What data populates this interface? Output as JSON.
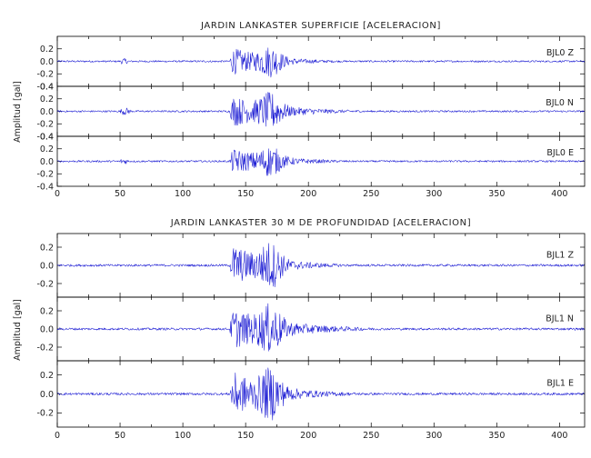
{
  "chart_data": [
    {
      "type": "line",
      "title": "JARDIN LANKASTER SUPERFICIE [ACELERACION]",
      "ylabel": "Amplitud [gal]",
      "xlabel": "",
      "xlim": [
        0,
        420
      ],
      "xticks": [
        "0",
        "50",
        "100",
        "150",
        "200",
        "250",
        "300",
        "350",
        "400"
      ],
      "grid": false,
      "line_color": "#1414d2",
      "panels": [
        {
          "channel": "BJL0  Z",
          "ylim": [
            -0.4,
            0.4
          ],
          "yticks": [
            "0.2",
            "0.0",
            "-0.2",
            "-0.4"
          ],
          "top_tick": "0.2",
          "events": [
            {
              "t0": 48,
              "t1": 58,
              "peak": 0.05
            },
            {
              "t0": 137,
              "t1": 240,
              "peak": 0.32
            }
          ]
        },
        {
          "channel": "BJL0  N",
          "ylim": [
            -0.4,
            0.4
          ],
          "yticks": [
            "0.4",
            "0.2",
            "0.0",
            "-0.2",
            "-0.4"
          ],
          "top_tick": "0.4",
          "events": [
            {
              "t0": 48,
              "t1": 60,
              "peak": 0.06
            },
            {
              "t0": 137,
              "t1": 260,
              "peak": 0.36
            }
          ]
        },
        {
          "channel": "BJL0  E",
          "ylim": [
            -0.4,
            0.4
          ],
          "yticks": [
            "0.4",
            "0.2",
            "0.0",
            "-0.2",
            "-0.4"
          ],
          "top_tick": "0.4",
          "events": [
            {
              "t0": 48,
              "t1": 58,
              "peak": 0.05
            },
            {
              "t0": 137,
              "t1": 250,
              "peak": 0.3
            }
          ]
        }
      ]
    },
    {
      "type": "line",
      "title": "JARDIN LANKASTER 30 M DE PROFUNDIDAD [ACELERACION]",
      "ylabel": "Amplitud [gal]",
      "xlabel": "",
      "xlim": [
        0,
        420
      ],
      "xticks": [
        "0",
        "50",
        "100",
        "150",
        "200",
        "250",
        "300",
        "350",
        "400"
      ],
      "grid": false,
      "line_color": "#1414d2",
      "panels": [
        {
          "channel": "BJL1  Z",
          "ylim": [
            -0.35,
            0.35
          ],
          "yticks": [
            "0.2",
            "0.0",
            "-0.2"
          ],
          "events": [
            {
              "t0": 137,
              "t1": 240,
              "peak": 0.33
            }
          ]
        },
        {
          "channel": "BJL1  N",
          "ylim": [
            -0.35,
            0.35
          ],
          "yticks": [
            "0.2",
            "0.0",
            "-0.2"
          ],
          "events": [
            {
              "t0": 137,
              "t1": 270,
              "peak": 0.32
            }
          ]
        },
        {
          "channel": "BJL1  E",
          "ylim": [
            -0.35,
            0.35
          ],
          "yticks": [
            "0.2",
            "0.0",
            "-0.2"
          ],
          "events": [
            {
              "t0": 137,
              "t1": 250,
              "peak": 0.34
            }
          ]
        }
      ]
    }
  ]
}
